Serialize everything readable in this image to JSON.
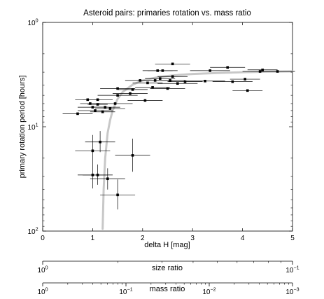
{
  "chart_data": {
    "type": "scatter",
    "title": "Asteroid pairs: primaries rotation vs. mass ratio",
    "xlabel": "delta H [mag]",
    "ylabel": "primary rotation period [hours]",
    "xlim": [
      0,
      5
    ],
    "ylim": [
      1,
      100
    ],
    "y_scale": "log",
    "y_reversed": true,
    "x_ticks": [
      "0",
      "1",
      "2",
      "3",
      "4",
      "5"
    ],
    "y_ticks": [
      {
        "value": 1,
        "base": "10",
        "exp": "0"
      },
      {
        "value": 10,
        "base": "10",
        "exp": "1"
      },
      {
        "value": 100,
        "base": "10",
        "exp": "2"
      }
    ],
    "grid": false,
    "points": [
      {
        "x": 0.7,
        "y": 7.5,
        "xerr": 0.3
      },
      {
        "x": 0.9,
        "y": 5.5,
        "xerr": 0.25
      },
      {
        "x": 0.95,
        "y": 6.0,
        "xerr": 0.2
      },
      {
        "x": 1.0,
        "y": 6.5,
        "xerr": 0.3
      },
      {
        "x": 1.05,
        "y": 7.0,
        "xerr": 0.35
      },
      {
        "x": 1.1,
        "y": 5.5,
        "xerr": 0.3
      },
      {
        "x": 1.1,
        "y": 6.1,
        "xerr": 0.2
      },
      {
        "x": 1.2,
        "y": 7.2,
        "xerr": 0.25
      },
      {
        "x": 1.25,
        "y": 6.5,
        "xerr": 0.3
      },
      {
        "x": 1.35,
        "y": 6.7,
        "xerr": 0.3
      },
      {
        "x": 1.45,
        "y": 6.0,
        "xerr": 0.35
      },
      {
        "x": 1.5,
        "y": 4.3,
        "xerr": 0.35
      },
      {
        "x": 1.5,
        "y": 5.0,
        "xerr": 0.4
      },
      {
        "x": 1.75,
        "y": 4.8,
        "xerr": 0.35
      },
      {
        "x": 1.8,
        "y": 4.4,
        "xerr": 0.3
      },
      {
        "x": 1.95,
        "y": 3.6,
        "xerr": 0.3
      },
      {
        "x": 2.05,
        "y": 5.6,
        "xerr": 0.35
      },
      {
        "x": 2.1,
        "y": 3.8,
        "xerr": 0.3
      },
      {
        "x": 2.2,
        "y": 4.2,
        "xerr": 0.35
      },
      {
        "x": 2.25,
        "y": 3.6,
        "xerr": 0.35
      },
      {
        "x": 2.3,
        "y": 2.9,
        "xerr": 0.3
      },
      {
        "x": 2.35,
        "y": 3.45,
        "xerr": 0.3
      },
      {
        "x": 2.4,
        "y": 2.9,
        "xerr": 0.3
      },
      {
        "x": 2.5,
        "y": 4.3,
        "xerr": 0.35
      },
      {
        "x": 2.55,
        "y": 3.6,
        "xerr": 0.3
      },
      {
        "x": 2.6,
        "y": 2.5,
        "xerr": 0.35
      },
      {
        "x": 2.6,
        "y": 3.3,
        "xerr": 0.3
      },
      {
        "x": 2.7,
        "y": 3.85,
        "xerr": 0.4
      },
      {
        "x": 2.85,
        "y": 3.7,
        "xerr": 0.35
      },
      {
        "x": 3.25,
        "y": 3.65,
        "xerr": 0.4
      },
      {
        "x": 3.35,
        "y": 2.9,
        "xerr": 0.4
      },
      {
        "x": 3.7,
        "y": 2.7,
        "xerr": 0.35
      },
      {
        "x": 3.8,
        "y": 3.7,
        "xerr": 0.4
      },
      {
        "x": 4.05,
        "y": 3.5,
        "xerr": 0.3
      },
      {
        "x": 4.1,
        "y": 4.5,
        "xerr": 0.3
      },
      {
        "x": 4.35,
        "y": 2.95,
        "xerr": 0.35
      },
      {
        "x": 4.4,
        "y": 2.85,
        "xerr": 0.3
      },
      {
        "x": 4.7,
        "y": 2.95,
        "xerr": 0.35
      },
      {
        "x": 1.0,
        "y": 17.0,
        "xerr": 0.35,
        "yerr_lo": 12.0,
        "yerr_hi": 22.0
      },
      {
        "x": 1.0,
        "y": 29.0,
        "xerr": 0.3,
        "yerr_lo": 22.0,
        "yerr_hi": 39.0
      },
      {
        "x": 1.1,
        "y": 29.0,
        "xerr": 0.3,
        "yerr_lo": 23.0,
        "yerr_hi": 36.0
      },
      {
        "x": 1.15,
        "y": 14.0,
        "xerr": 0.3,
        "yerr_lo": 11.0,
        "yerr_hi": 17.5
      },
      {
        "x": 1.3,
        "y": 31.5,
        "xerr": 0.35,
        "yerr_lo": 25.0,
        "yerr_hi": 40.0
      },
      {
        "x": 1.5,
        "y": 45.0,
        "xerr": 0.35,
        "yerr_lo": 32.0,
        "yerr_hi": 62.0
      },
      {
        "x": 1.8,
        "y": 18.8,
        "xerr": 0.35,
        "yerr_lo": 13.0,
        "yerr_hi": 27.0
      }
    ],
    "model_curve": {
      "color": "#c8c8c8",
      "x": [
        1.2,
        1.22,
        1.25,
        1.3,
        1.35,
        1.4,
        1.5,
        1.6,
        1.8,
        2.0,
        2.3,
        2.6,
        3.0,
        3.5,
        4.0,
        4.5,
        5.0
      ],
      "y": [
        95,
        40,
        20,
        11.5,
        8.6,
        7.0,
        5.4,
        4.65,
        3.95,
        3.6,
        3.35,
        3.22,
        3.12,
        3.05,
        3.0,
        2.97,
        2.95
      ]
    },
    "secondary_axes": [
      {
        "label": "size ratio",
        "scale": "log",
        "ticks": [
          {
            "deltaH": 0,
            "base": "10",
            "exp": "0"
          },
          {
            "deltaH": 5,
            "base": "10",
            "exp": "−1"
          }
        ]
      },
      {
        "label": "mass ratio",
        "scale": "log",
        "ticks": [
          {
            "deltaH": 0,
            "base": "10",
            "exp": "0"
          },
          {
            "deltaH": 1.6667,
            "base": "10",
            "exp": "−1"
          },
          {
            "deltaH": 3.3333,
            "base": "10",
            "exp": "−2"
          },
          {
            "deltaH": 5,
            "base": "10",
            "exp": "−3"
          }
        ]
      }
    ]
  }
}
